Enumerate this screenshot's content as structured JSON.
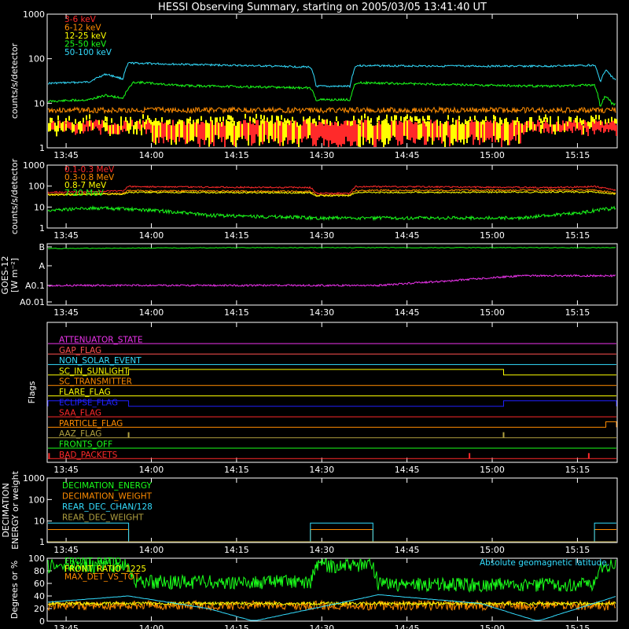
{
  "title": "HESSI Observing Summary, starting on 2005/03/05 13:41:40 UT",
  "time_labels": [
    "13:45",
    "14:00",
    "14:15",
    "14:30",
    "14:45",
    "15:00",
    "15:15"
  ],
  "colors": {
    "background": "#000000",
    "axes": "#ffffff",
    "red": "#ff2a2a",
    "orange": "#ff8c00",
    "yellow": "#ffff00",
    "green": "#1aff1a",
    "cyan": "#33ddff",
    "magenta": "#ee33ee",
    "blue": "#2020ff",
    "olive": "#b0a040",
    "salmon": "#ff5050"
  },
  "chart_data": [
    {
      "id": "hxr",
      "type": "line",
      "ylabel": "counts/s/detector",
      "yscale": "log",
      "ylim": [
        1,
        1000
      ],
      "yticks": [
        "1",
        "10",
        "100",
        "1000"
      ],
      "legend_placement": "top-left",
      "series": [
        {
          "name": "3-6 keV",
          "color": "#ff2a2a",
          "pattern": "bars",
          "values": [
            3,
            3,
            3,
            3,
            3,
            3,
            3
          ]
        },
        {
          "name": "6-12 keV",
          "color": "#ff8c00",
          "values": [
            7,
            7,
            7,
            8,
            7,
            7,
            7,
            7
          ]
        },
        {
          "name": "12-25 keV",
          "color": "#ffff00",
          "pattern": "bars",
          "values": [
            3,
            3,
            3,
            3,
            3,
            3,
            3
          ]
        },
        {
          "name": "25-50 keV",
          "color": "#1aff1a",
          "x": [
            "13:41:40",
            "13:49",
            "13:52",
            "13:55",
            "13:57",
            "14:05",
            "14:20",
            "14:28",
            "14:29",
            "14:35",
            "14:36",
            "14:42",
            "14:55",
            "15:10",
            "15:18",
            "15:19",
            "15:20",
            "15:21",
            "15:22"
          ],
          "values": [
            11,
            12,
            15,
            13,
            30,
            25,
            23,
            22,
            12,
            12,
            29,
            28,
            26,
            24,
            26,
            8,
            15,
            10,
            9
          ]
        },
        {
          "name": "50-100 keV",
          "color": "#33ddff",
          "x": [
            "13:41:40",
            "13:49",
            "13:52",
            "13:55",
            "13:56",
            "14:05",
            "14:28",
            "14:29",
            "14:35",
            "14:36",
            "14:55",
            "15:10",
            "15:18",
            "15:19",
            "15:20",
            "15:21",
            "15:22"
          ],
          "values": [
            28,
            30,
            45,
            35,
            80,
            75,
            65,
            24,
            24,
            70,
            68,
            68,
            72,
            30,
            55,
            40,
            30
          ]
        }
      ]
    },
    {
      "id": "gamma",
      "type": "line",
      "ylabel": "counts/s/detector",
      "yscale": "log",
      "ylim": [
        1,
        1000
      ],
      "yticks": [
        "1",
        "10",
        "100",
        "1000"
      ],
      "legend_placement": "top-left",
      "series": [
        {
          "name": "0.1-0.3 MeV",
          "color": "#ff2a2a",
          "x": [
            "13:41:40",
            "13:49",
            "13:55",
            "13:56",
            "14:05",
            "14:28",
            "14:29",
            "14:35",
            "14:36",
            "14:55",
            "15:10",
            "15:18",
            "15:22"
          ],
          "values": [
            50,
            55,
            60,
            95,
            90,
            85,
            45,
            45,
            95,
            90,
            85,
            95,
            60
          ]
        },
        {
          "name": "0.3-0.8 MeV",
          "color": "#ff8c00",
          "x": [
            "13:41:40",
            "13:55",
            "13:56",
            "14:28",
            "14:29",
            "14:35",
            "14:36",
            "15:18",
            "15:22"
          ],
          "values": [
            40,
            45,
            60,
            55,
            38,
            38,
            62,
            65,
            45
          ]
        },
        {
          "name": "0.8-7 MeV",
          "color": "#ffff00",
          "x": [
            "13:41:40",
            "13:55",
            "13:56",
            "14:28",
            "14:29",
            "14:35",
            "14:36",
            "15:18",
            "15:22"
          ],
          "values": [
            38,
            42,
            50,
            48,
            35,
            35,
            50,
            52,
            42
          ]
        },
        {
          "name": "7-20 MeV",
          "color": "#1aff1a",
          "x": [
            "13:41:40",
            "13:50",
            "14:00",
            "14:10",
            "14:30",
            "14:50",
            "15:05",
            "15:15",
            "15:22"
          ],
          "values": [
            7,
            9,
            7,
            4,
            3,
            3,
            3,
            5,
            9
          ]
        }
      ]
    },
    {
      "id": "goes",
      "type": "line",
      "ylabel": "GOES-12",
      "ylabel2": "[W m⁻²]",
      "yscale": "log",
      "yticks": [
        "A0.01",
        "A0.1",
        "A",
        "B"
      ],
      "series": [
        {
          "color": "#1aff1a",
          "x": [
            "13:41:40",
            "14:00",
            "14:20",
            "14:35",
            "15:00",
            "15:22"
          ],
          "values": [
            0.95,
            0.98,
            1.0,
            1.0,
            1.0,
            1.0
          ]
        },
        {
          "color": "#ee33ee",
          "x": [
            "13:41:40",
            "14:40",
            "14:52",
            "15:00",
            "15:05",
            "15:22"
          ],
          "values": [
            0.1,
            0.1,
            0.13,
            0.16,
            0.18,
            0.18
          ]
        }
      ]
    },
    {
      "id": "flags",
      "type": "line",
      "ylabel": "Flags",
      "flags": [
        {
          "name": "ATTENUATOR_STATE",
          "color": "#ee33ee",
          "high": [],
          "spikes": []
        },
        {
          "name": "GAP_FLAG",
          "color": "#ff5050",
          "high": [],
          "spikes": []
        },
        {
          "name": "NON_SOLAR_EVENT",
          "color": "#33ddff",
          "high": [],
          "spikes": []
        },
        {
          "name": "SC_IN_SUNLIGHT",
          "color": "#ffff00",
          "high": [
            [
              "13:56",
              "15:02"
            ]
          ],
          "spikes": []
        },
        {
          "name": "SC_TRANSMITTER",
          "color": "#ff8c00",
          "high": [],
          "spikes": []
        },
        {
          "name": "FLARE_FLAG",
          "color": "#ffff00",
          "high": [],
          "spikes": []
        },
        {
          "name": "ECLIPSE_FLAG",
          "color": "#2020ff",
          "high": [
            [
              "13:41:40",
              "13:56"
            ],
            [
              "15:02",
              "15:22"
            ]
          ],
          "spikes": []
        },
        {
          "name": "SAA_FLAG",
          "color": "#ff2a2a",
          "high": [],
          "spikes": []
        },
        {
          "name": "PARTICLE_FLAG",
          "color": "#ff8c00",
          "high": [
            [
              "15:20",
              "15:22"
            ]
          ],
          "spikes": []
        },
        {
          "name": "AAZ_FLAG",
          "color": "#b0a040",
          "high": [],
          "spikes": [
            "13:56",
            "15:02"
          ]
        },
        {
          "name": "FRONTS_OFF",
          "color": "#1aff1a",
          "high": [],
          "spikes": []
        },
        {
          "name": "BAD_PACKETS",
          "color": "#ff2a2a",
          "high": [],
          "spikes": [
            "13:42",
            "14:56",
            "15:17"
          ]
        }
      ]
    },
    {
      "id": "decimation",
      "type": "line",
      "ylabel": "DECIMATION",
      "ylabel2": "ENERGY or weight",
      "yscale": "log",
      "ylim": [
        1,
        1000
      ],
      "yticks": [
        "1",
        "10",
        "100",
        "1000"
      ],
      "series": [
        {
          "name": "DECIMATION_ENERGY",
          "color": "#1aff1a",
          "x": [
            "13:41:40",
            "15:22"
          ],
          "values": [
            1,
            1
          ]
        },
        {
          "name": "DECIMATION_WEIGHT",
          "color": "#ff8c00",
          "x": [
            "13:41:40",
            "13:56",
            "13:56",
            "14:28",
            "14:28",
            "14:39",
            "14:39",
            "15:18",
            "15:18",
            "15:22"
          ],
          "values": [
            4,
            4,
            1,
            1,
            4,
            4,
            1,
            1,
            4,
            4
          ]
        },
        {
          "name": "REAR_DEC_CHAN/128",
          "color": "#33ddff",
          "x": [
            "13:41:40",
            "13:56",
            "13:56",
            "14:28",
            "14:28",
            "14:39",
            "14:39",
            "15:18",
            "15:18",
            "15:22"
          ],
          "values": [
            8,
            8,
            1,
            1,
            8,
            8,
            1,
            1,
            8,
            8
          ]
        },
        {
          "name": "REAR_DEC_WEIGHT",
          "color": "#b0a040",
          "x": [
            "13:41:40",
            "15:22"
          ],
          "values": [
            1,
            1
          ]
        }
      ]
    },
    {
      "id": "ratios",
      "type": "line",
      "ylabel": "Degrees or %",
      "ylim": [
        0,
        100
      ],
      "yticks": [
        "0",
        "20",
        "40",
        "60",
        "80",
        "100"
      ],
      "legend_placement": "top-left",
      "annotation": "Absolute geomagnetic latitude, ",
      "series": [
        {
          "name": "FRONT_RATIO",
          "color": "#1aff1a",
          "x": [
            "13:41:40",
            "13:56",
            "13:57",
            "14:28",
            "14:29",
            "14:39",
            "14:40",
            "15:18",
            "15:19",
            "15:22"
          ],
          "values": [
            88,
            88,
            62,
            62,
            88,
            88,
            58,
            58,
            88,
            88
          ]
        },
        {
          "name": "FRONT_RATIO_1225",
          "color": "#ffff00",
          "x": [
            "13:41:40",
            "15:22"
          ],
          "values": [
            28,
            28
          ]
        },
        {
          "name": "MAX_DET_VS_TOT",
          "color": "#ff8c00",
          "x": [
            "13:41:40",
            "15:22"
          ],
          "values": [
            25,
            25
          ]
        },
        {
          "color": "#33ddff",
          "x": [
            "13:41:40",
            "13:56",
            "14:10",
            "14:18",
            "14:40",
            "14:58",
            "15:08",
            "15:22"
          ],
          "values": [
            30,
            40,
            20,
            0,
            42,
            28,
            0,
            40
          ]
        }
      ]
    }
  ]
}
